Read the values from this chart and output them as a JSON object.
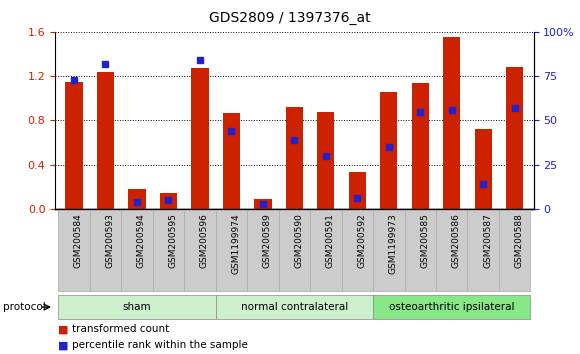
{
  "title": "GDS2809 / 1397376_at",
  "categories": [
    "GSM200584",
    "GSM200593",
    "GSM200594",
    "GSM200595",
    "GSM200596",
    "GSM1199974",
    "GSM200589",
    "GSM200590",
    "GSM200591",
    "GSM200592",
    "GSM1199973",
    "GSM200585",
    "GSM200586",
    "GSM200587",
    "GSM200588"
  ],
  "red_values": [
    1.15,
    1.24,
    0.18,
    0.14,
    1.27,
    0.87,
    0.09,
    0.92,
    0.88,
    0.33,
    1.06,
    1.14,
    1.55,
    0.72,
    1.28
  ],
  "blue_pct": [
    73,
    82,
    4,
    5,
    84,
    44,
    3,
    39,
    30,
    6,
    35,
    55,
    56,
    14,
    57
  ],
  "group_labels": [
    "sham",
    "normal contralateral",
    "osteoarthritic ipsilateral"
  ],
  "group_ranges": [
    [
      0,
      5
    ],
    [
      5,
      10
    ],
    [
      10,
      15
    ]
  ],
  "group_colors": [
    "#ccf0cc",
    "#ccf0cc",
    "#88e888"
  ],
  "ylim_left": [
    0,
    1.6
  ],
  "ylim_right": [
    0,
    100
  ],
  "yticks_left": [
    0,
    0.4,
    0.8,
    1.2,
    1.6
  ],
  "yticks_right": [
    0,
    25,
    50,
    75,
    100
  ],
  "bar_color": "#cc2200",
  "marker_color": "#2222cc",
  "bar_width": 0.55,
  "protocol_label": "protocol",
  "legend_items": [
    "transformed count",
    "percentile rank within the sample"
  ],
  "legend_colors": [
    "#cc2200",
    "#2222cc"
  ],
  "bg_color": "#ffffff",
  "separator_color": "#333333",
  "tick_bg_color": "#cccccc"
}
